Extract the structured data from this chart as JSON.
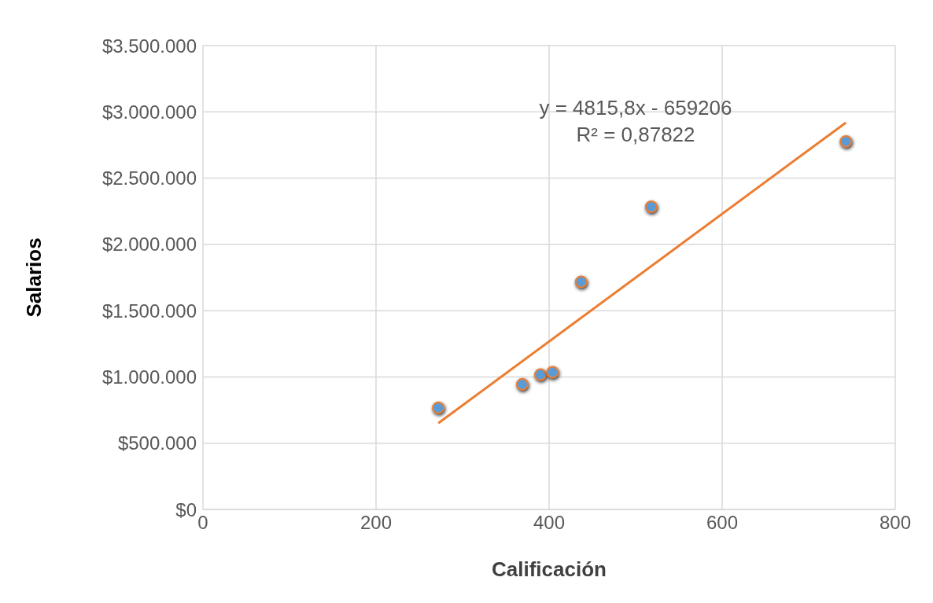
{
  "chart_data": {
    "type": "scatter",
    "xlabel": "Calificación",
    "ylabel": "Salarios",
    "xlim": [
      0,
      800
    ],
    "xticks": [
      0,
      200,
      400,
      600,
      800
    ],
    "ylim": [
      0,
      3500000
    ],
    "yticks": [
      {
        "value": 0,
        "label": "$0"
      },
      {
        "value": 500000,
        "label": "$500.000"
      },
      {
        "value": 1000000,
        "label": "$1.000.000"
      },
      {
        "value": 1500000,
        "label": "$1.500.000"
      },
      {
        "value": 2000000,
        "label": "$2.000.000"
      },
      {
        "value": 2500000,
        "label": "$2.500.000"
      },
      {
        "value": 3000000,
        "label": "$3.000.000"
      },
      {
        "value": 3500000,
        "label": "$3.500.000"
      }
    ],
    "grid": true,
    "marker": "circle",
    "series": [
      {
        "color": "#5b9bd5",
        "x": [
          272,
          369,
          390,
          404,
          437,
          518,
          743
        ],
        "values": [
          767000,
          944000,
          1017000,
          1035000,
          1717000,
          2284000,
          2777000
        ]
      },
      {
        "type": "line",
        "color": "#ed7d31",
        "line_style": "solid",
        "marker": "none",
        "x": [
          272,
          743
        ],
        "values": [
          651000,
          2919000
        ]
      }
    ],
    "annotations": [
      "y = 4815,8x - 659206",
      "R² = 0,87822"
    ]
  }
}
